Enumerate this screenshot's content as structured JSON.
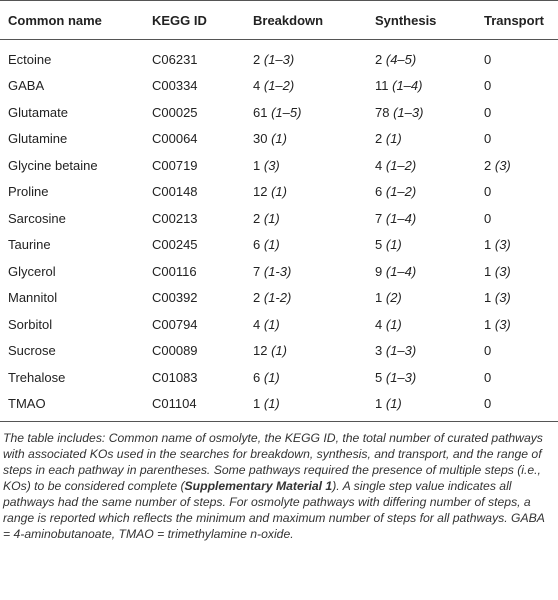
{
  "table": {
    "header": [
      "Common name",
      "KEGG ID",
      "Breakdown",
      "Synthesis",
      "Transport"
    ],
    "rows": [
      [
        "Ectoine",
        "C06231",
        [
          "2",
          "(1–3)"
        ],
        [
          "2",
          "(4–5)"
        ],
        [
          "0"
        ]
      ],
      [
        "GABA",
        "C00334",
        [
          "4",
          "(1–2)"
        ],
        [
          "11",
          "(1–4)"
        ],
        [
          "0"
        ]
      ],
      [
        "Glutamate",
        "C00025",
        [
          "61",
          "(1–5)"
        ],
        [
          "78",
          "(1–3)"
        ],
        [
          "0"
        ]
      ],
      [
        "Glutamine",
        "C00064",
        [
          "30",
          "(1)"
        ],
        [
          "2",
          "(1)"
        ],
        [
          "0"
        ]
      ],
      [
        "Glycine betaine",
        "C00719",
        [
          "1",
          "(3)"
        ],
        [
          "4",
          "(1–2)"
        ],
        [
          "2",
          "(3)"
        ]
      ],
      [
        "Proline",
        "C00148",
        [
          "12",
          "(1)"
        ],
        [
          "6",
          "(1–2)"
        ],
        [
          "0"
        ]
      ],
      [
        "Sarcosine",
        "C00213",
        [
          "2",
          "(1)"
        ],
        [
          "7",
          "(1–4)"
        ],
        [
          "0"
        ]
      ],
      [
        "Taurine",
        "C00245",
        [
          "6",
          "(1)"
        ],
        [
          "5",
          "(1)"
        ],
        [
          "1",
          "(3)"
        ]
      ],
      [
        "Glycerol",
        "C00116",
        [
          "7",
          "(1-3)"
        ],
        [
          "9",
          "(1–4)"
        ],
        [
          "1",
          "(3)"
        ]
      ],
      [
        "Mannitol",
        "C00392",
        [
          "2",
          "(1-2)"
        ],
        [
          "1",
          "(2)"
        ],
        [
          "1",
          "(3)"
        ]
      ],
      [
        "Sorbitol",
        "C00794",
        [
          "4",
          "(1)"
        ],
        [
          "4",
          "(1)"
        ],
        [
          "1",
          "(3)"
        ]
      ],
      [
        "Sucrose",
        "C00089",
        [
          "12",
          "(1)"
        ],
        [
          "3",
          "(1–3)"
        ],
        [
          "0"
        ]
      ],
      [
        "Trehalose",
        "C01083",
        [
          "6",
          "(1)"
        ],
        [
          "5",
          "(1–3)"
        ],
        [
          "0"
        ]
      ],
      [
        "TMAO",
        "C01104",
        [
          "1",
          "(1)"
        ],
        [
          "1",
          "(1)"
        ],
        [
          "0"
        ]
      ]
    ]
  },
  "caption": [
    "The table includes: Common name of osmolyte, the KEGG ID, the total number of curated pathways with associated KOs used in the searches for breakdown, synthesis, and transport, and the range of steps in each pathway in parentheses. Some pathways required the presence of multiple steps (i.e., KOs) to be considered complete (",
    "Supplementary Material 1",
    "). A single step value indicates all pathways had the same number of steps. For osmolyte pathways with differing number of steps, a range is reported which reflects the minimum and maximum number of steps for all pathways. GABA = 4-aminobutanoate, TMAO = trimethylamine n-oxide."
  ]
}
